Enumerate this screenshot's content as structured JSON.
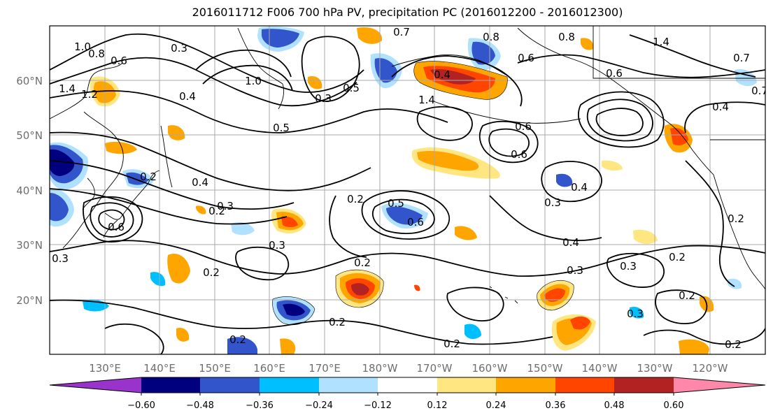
{
  "title": "2016011712 F006 700 hPa PV, precipitation PC (2016012200 - 2016012300)",
  "lat_labels": [
    "60°N",
    "50°N",
    "40°N",
    "30°N",
    "20°N"
  ],
  "lon_labels": [
    "130°E",
    "140°E",
    "150°E",
    "160°E",
    "170°E",
    "180°W",
    "170°W",
    "160°W",
    "150°W",
    "140°W",
    "130°W",
    "120°W"
  ],
  "colorbar": {
    "colors": [
      "#9933cc",
      "#00007f",
      "#3355cc",
      "#00bfff",
      "#b0e2ff",
      "#ffffff",
      "#ffe680",
      "#ffa500",
      "#ff4500",
      "#b22222",
      "#ff88aa"
    ],
    "tick_labels": [
      "−0.60",
      "−0.48",
      "−0.36",
      "−0.24",
      "−0.12",
      "0.12",
      "0.24",
      "0.36",
      "0.48",
      "0.60"
    ]
  },
  "contour_labels": [
    "1.0",
    "0.8",
    "0.6",
    "0.3",
    "0.7",
    "0.8",
    "0.8",
    "1.4",
    "0.7",
    "1.4",
    "1.2",
    "0.4",
    "1.0",
    "0.3",
    "0.5",
    "0.4",
    "0.6",
    "0.7",
    "0.5",
    "1.4",
    "0.6",
    "0.4",
    "0.6",
    "0.6",
    "0.2",
    "0.4",
    "0.2",
    "0.5",
    "0.3",
    "0.4",
    "0.6",
    "0.3",
    "0.3",
    "0.2",
    "0.2",
    "0.6",
    "0.3",
    "0.2",
    "0.4",
    "0.2",
    "0.2",
    "0.3",
    "0.3",
    "0.2",
    "0.2",
    "0.2",
    "0.2",
    "0.3",
    "0.2"
  ]
}
